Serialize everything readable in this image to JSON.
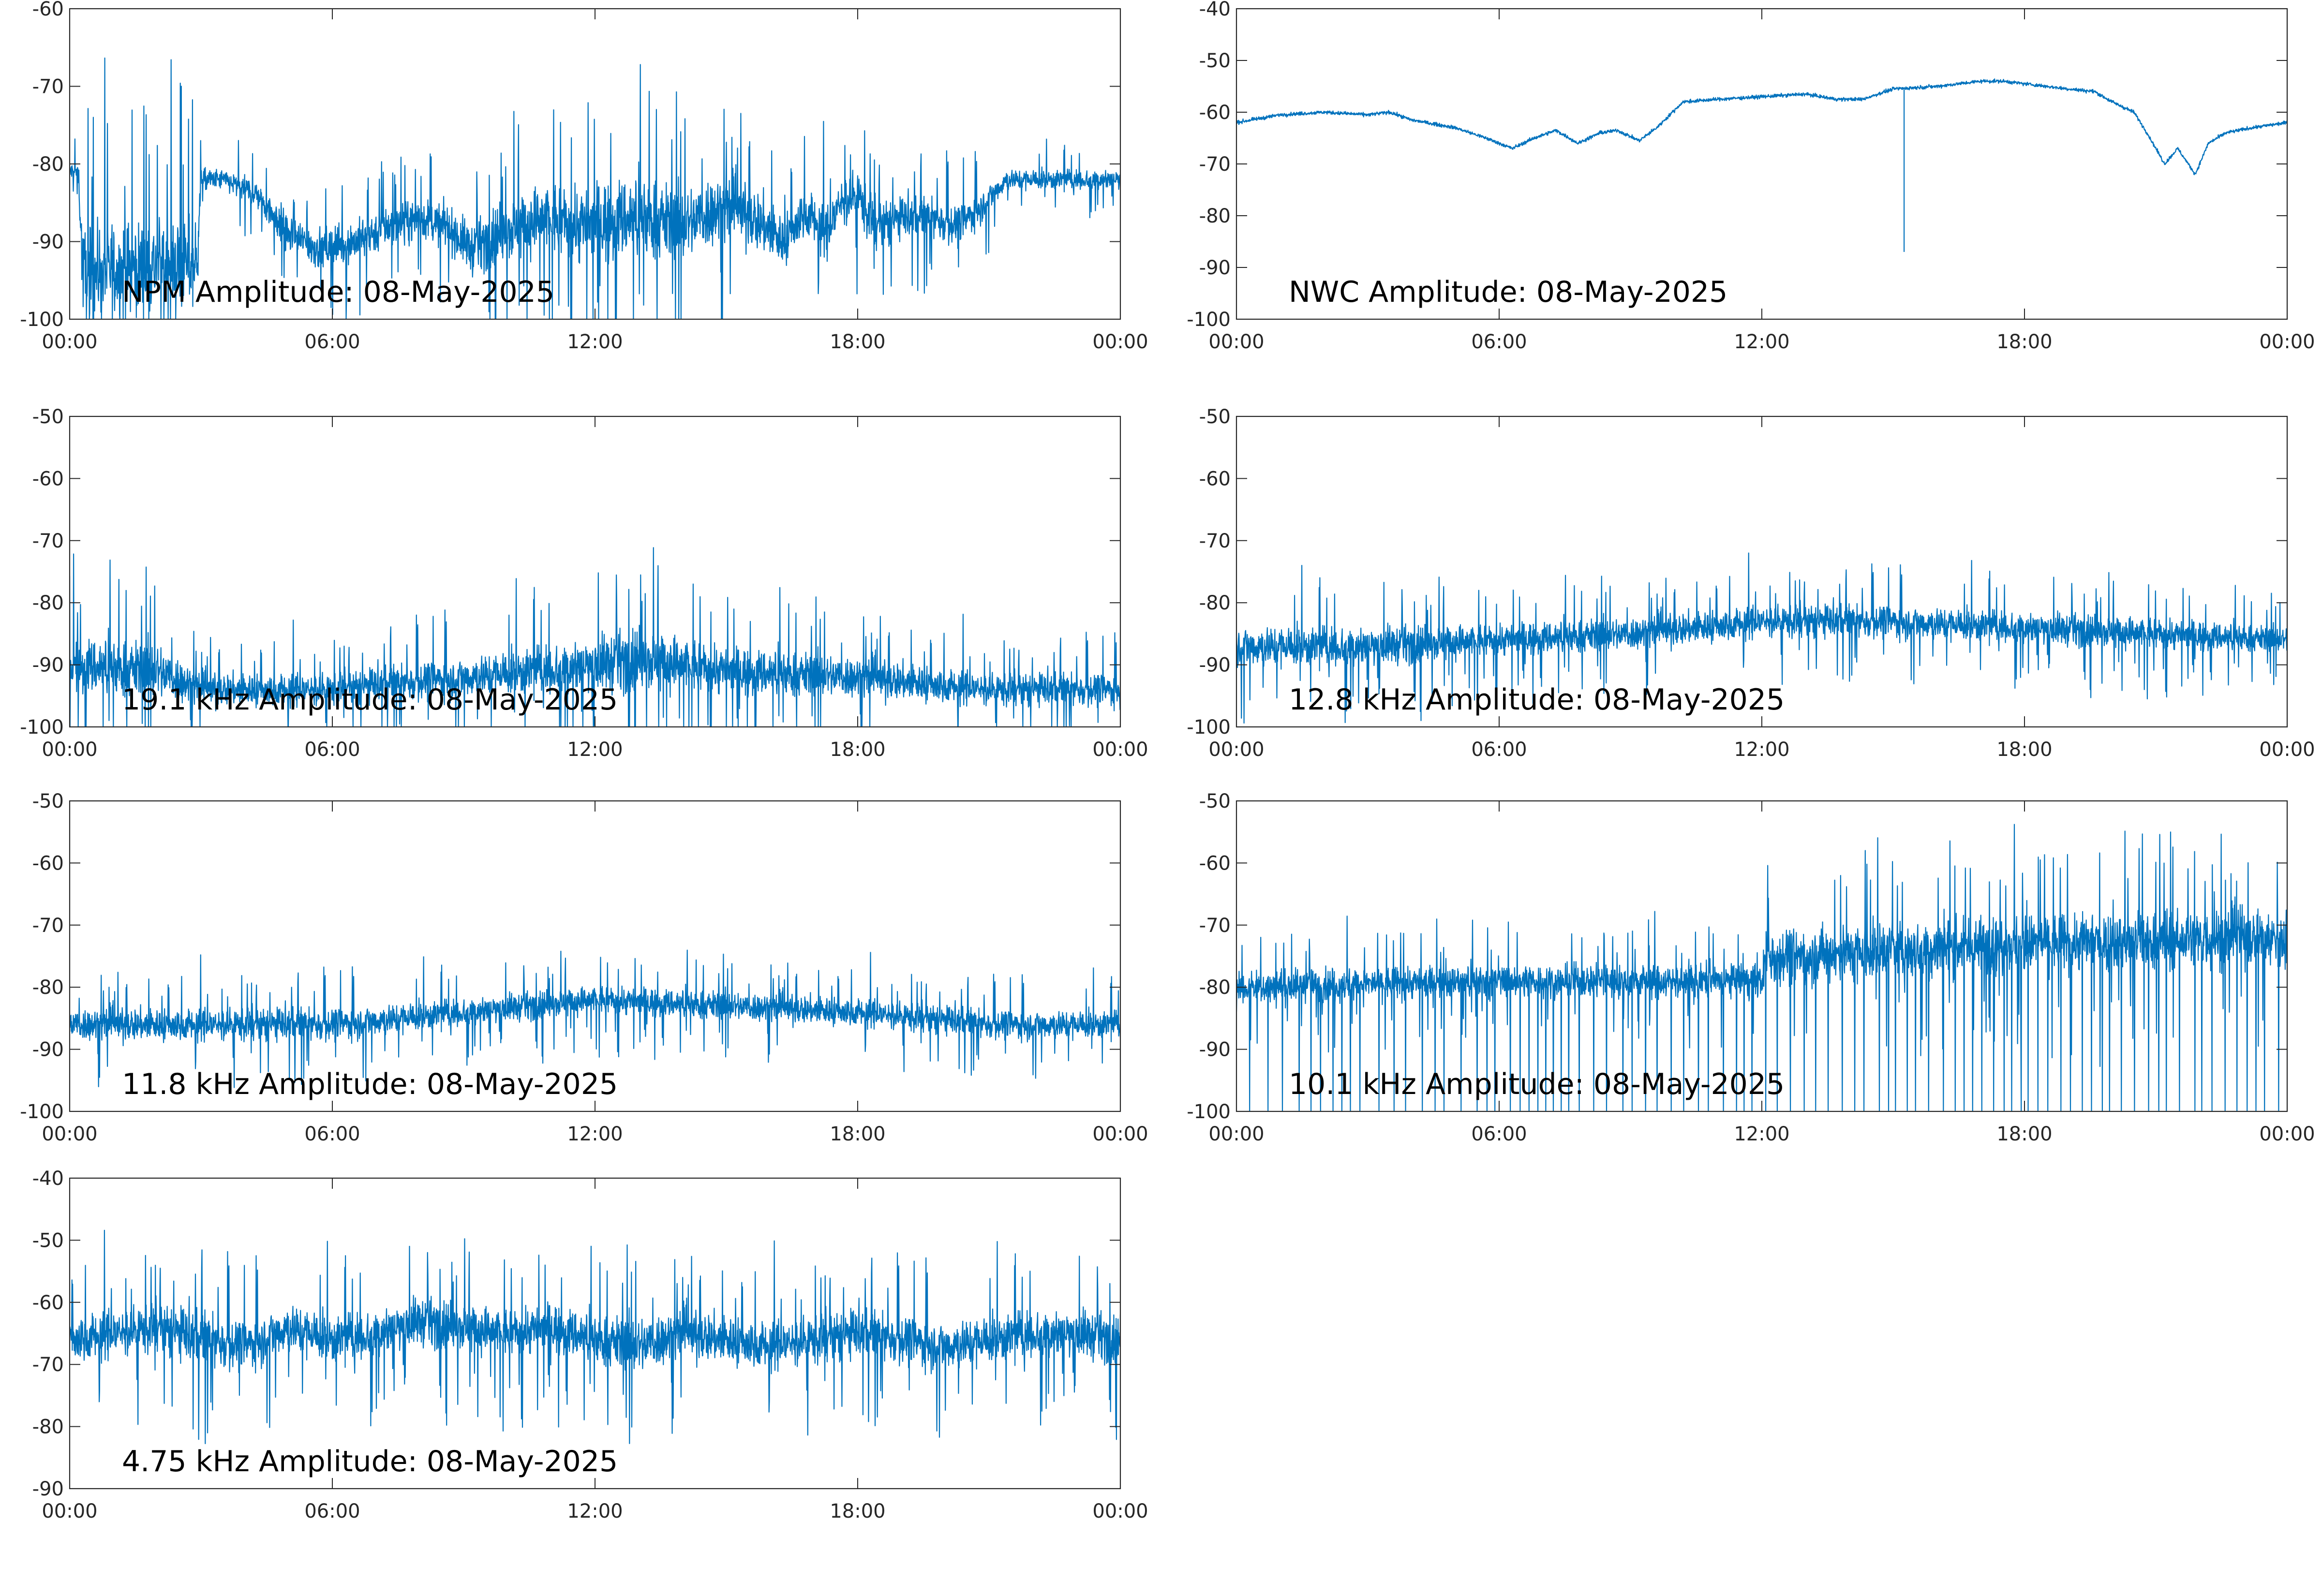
{
  "figure": {
    "line_color": "#0072bd",
    "axis_color": "#262626",
    "background": "#ffffff"
  },
  "chart_data": [
    {
      "type": "line",
      "title": "NPM Amplitude: 08-May-2025",
      "xlabel": "",
      "ylabel": "",
      "x_ticks": [
        "00:00",
        "06:00",
        "12:00",
        "18:00",
        "00:00"
      ],
      "y_ticks": [
        -60,
        -70,
        -80,
        -90,
        -100
      ],
      "ylim": [
        -100,
        -60
      ],
      "xlim_hours": [
        0,
        24
      ],
      "grid": false,
      "series": [
        {
          "x_hours": [
            0,
            0.2,
            0.3,
            2.0,
            2.9,
            3.0,
            3.5,
            4.3,
            5.0,
            5.7,
            6.5,
            7.3,
            8.0,
            8.6,
            9.2,
            9.8,
            10.8,
            11.8,
            12.6,
            13.3,
            14.0,
            14.7,
            15.3,
            15.9,
            16.3,
            16.8,
            17.3,
            17.6,
            18.0,
            18.4,
            19.0,
            19.7,
            20.3,
            20.9,
            21.4,
            22.2,
            23.0,
            24.0
          ],
          "center": [
            -81,
            -81,
            -94,
            -93,
            -93,
            -82,
            -82,
            -84,
            -89,
            -91,
            -90,
            -88,
            -87,
            -88,
            -91,
            -89,
            -87,
            -88,
            -87,
            -87,
            -88,
            -86,
            -86,
            -88,
            -90,
            -86,
            -89,
            -85,
            -84,
            -88,
            -87,
            -87,
            -88,
            -85,
            -82,
            -82,
            -82,
            -82
          ],
          "spread": [
            2,
            2,
            9,
            9,
            9,
            2,
            2,
            3,
            4,
            4,
            4,
            4,
            4,
            4,
            5,
            6,
            7,
            8,
            8,
            8,
            7,
            7,
            6,
            6,
            5,
            5,
            5,
            5,
            5,
            5,
            4,
            4,
            4,
            3,
            2,
            2,
            2,
            2
          ]
        }
      ]
    },
    {
      "type": "line",
      "title": "NWC Amplitude: 08-May-2025",
      "xlabel": "",
      "ylabel": "",
      "x_ticks": [
        "00:00",
        "06:00",
        "12:00",
        "18:00",
        "00:00"
      ],
      "y_ticks": [
        -40,
        -50,
        -60,
        -70,
        -80,
        -90,
        -100
      ],
      "ylim": [
        -100,
        -40
      ],
      "xlim_hours": [
        0,
        24
      ],
      "grid": false,
      "series": [
        {
          "x_hours": [
            0,
            1,
            2,
            3,
            3.5,
            4,
            5,
            5.7,
            6.3,
            6.8,
            7.3,
            7.8,
            8.3,
            8.7,
            9.2,
            9.6,
            10.2,
            11,
            12,
            13,
            13.7,
            14.3,
            15,
            16,
            17,
            17.5,
            18,
            19,
            19.6,
            20,
            20.5,
            20.8,
            21.2,
            21.5,
            21.9,
            22.2,
            22.6,
            23.2,
            24
          ],
          "center": [
            -62,
            -60.5,
            -60,
            -60.5,
            -60,
            -61.5,
            -63,
            -65,
            -67,
            -65,
            -63.5,
            -66,
            -64,
            -63.5,
            -65.5,
            -63,
            -58,
            -57.5,
            -57,
            -56.5,
            -57.5,
            -57.5,
            -55.5,
            -55,
            -54,
            -54,
            -54.5,
            -55.5,
            -56,
            -58,
            -60,
            -64,
            -70,
            -67,
            -72,
            -66,
            -64,
            -63,
            -62
          ],
          "spread": [
            0.4,
            0.4,
            0.4,
            0.4,
            0.4,
            0.4,
            0.4,
            0.4,
            0.4,
            0.4,
            0.4,
            0.4,
            0.4,
            0.4,
            0.4,
            0.4,
            0.4,
            0.4,
            0.4,
            0.4,
            0.4,
            0.4,
            0.4,
            0.4,
            0.4,
            0.4,
            0.4,
            0.4,
            0.4,
            0.4,
            0.4,
            0.4,
            0.4,
            0.4,
            0.4,
            0.4,
            0.4,
            0.4,
            0.4
          ],
          "spikes": [
            {
              "x_hours": 15.25,
              "value": -87
            }
          ]
        }
      ]
    },
    {
      "type": "line",
      "title": "19.1 kHz Amplitude: 08-May-2025",
      "xlabel": "",
      "ylabel": "",
      "x_ticks": [
        "00:00",
        "06:00",
        "12:00",
        "18:00",
        "00:00"
      ],
      "y_ticks": [
        -50,
        -60,
        -70,
        -80,
        -90,
        -100
      ],
      "ylim": [
        -100,
        -50
      ],
      "xlim_hours": [
        0,
        24
      ],
      "grid": false,
      "series": [
        {
          "x_hours": [
            0,
            2,
            3,
            6,
            9,
            12,
            13,
            15,
            18,
            21,
            24
          ],
          "center": [
            -90,
            -91,
            -94,
            -94,
            -92,
            -90,
            -89,
            -91,
            -92,
            -94,
            -94
          ],
          "spread": [
            7,
            7,
            4,
            4,
            5,
            7,
            8,
            6,
            5,
            4,
            4
          ]
        }
      ]
    },
    {
      "type": "line",
      "title": "12.8 kHz Amplitude: 08-May-2025",
      "xlabel": "",
      "ylabel": "",
      "x_ticks": [
        "00:00",
        "06:00",
        "12:00",
        "18:00",
        "00:00"
      ],
      "y_ticks": [
        -50,
        -60,
        -70,
        -80,
        -90,
        -100
      ],
      "ylim": [
        -100,
        -50
      ],
      "xlim_hours": [
        0,
        24
      ],
      "grid": false,
      "series": [
        {
          "x_hours": [
            0,
            3,
            6,
            9,
            12,
            15,
            18,
            21,
            24
          ],
          "center": [
            -87,
            -87,
            -86,
            -85,
            -83,
            -83,
            -84,
            -85,
            -86
          ],
          "spread": [
            5,
            5,
            4,
            4,
            4,
            4,
            4,
            4,
            3
          ]
        }
      ]
    },
    {
      "type": "line",
      "title": "11.8 kHz Amplitude: 08-May-2025",
      "xlabel": "",
      "ylabel": "",
      "x_ticks": [
        "00:00",
        "06:00",
        "12:00",
        "18:00",
        "00:00"
      ],
      "y_ticks": [
        -50,
        -60,
        -70,
        -80,
        -90,
        -100
      ],
      "ylim": [
        -100,
        -50
      ],
      "xlim_hours": [
        0,
        24
      ],
      "grid": false,
      "series": [
        {
          "x_hours": [
            0,
            3,
            6,
            9,
            12,
            15,
            18,
            21,
            24
          ],
          "center": [
            -86,
            -86,
            -86,
            -84,
            -82,
            -83,
            -84,
            -86,
            -86
          ],
          "spread": [
            4,
            4,
            4,
            3.5,
            3.5,
            3.5,
            3.5,
            3.5,
            3.5
          ]
        }
      ]
    },
    {
      "type": "line",
      "title": "10.1 kHz Amplitude: 08-May-2025",
      "xlabel": "",
      "ylabel": "",
      "x_ticks": [
        "00:00",
        "06:00",
        "12:00",
        "18:00",
        "00:00"
      ],
      "y_ticks": [
        -50,
        -60,
        -70,
        -80,
        -90,
        -100
      ],
      "ylim": [
        -100,
        -50
      ],
      "xlim_hours": [
        0,
        24
      ],
      "grid": false,
      "series": [
        {
          "x_hours": [
            0,
            6,
            12,
            12.1,
            18,
            24
          ],
          "center": [
            -80,
            -79,
            -79,
            -75,
            -73,
            -72
          ],
          "spread": [
            4,
            4,
            4,
            7,
            7,
            7
          ],
          "dropouts_per_hour": [
            [
              0,
              3
            ],
            [
              12,
              4
            ],
            [
              24,
              4
            ]
          ],
          "dropout_value": -100
        }
      ]
    },
    {
      "type": "line",
      "title": "4.75 kHz Amplitude: 08-May-2025",
      "xlabel": "",
      "ylabel": "",
      "x_ticks": [
        "00:00",
        "06:00",
        "12:00",
        "18:00",
        "00:00"
      ],
      "y_ticks": [
        -40,
        -50,
        -60,
        -70,
        -80,
        -90
      ],
      "ylim": [
        -90,
        -40
      ],
      "xlim_hours": [
        0,
        24
      ],
      "grid": false,
      "series": [
        {
          "x_hours": [
            0,
            1,
            2,
            3,
            4,
            5,
            6,
            7,
            8,
            9,
            10,
            11,
            12,
            13,
            14,
            15,
            16,
            17,
            18,
            19,
            20,
            21,
            22,
            23,
            24
          ],
          "center": [
            -66,
            -65,
            -64,
            -66,
            -67,
            -64,
            -66,
            -65,
            -63,
            -64,
            -65,
            -64,
            -66,
            -67,
            -65,
            -66,
            -67,
            -66,
            -65,
            -66,
            -67,
            -66,
            -65,
            -65,
            -66
          ],
          "spread": [
            6,
            6,
            6,
            7,
            6,
            6,
            6,
            6,
            6,
            6,
            6,
            6,
            6,
            7,
            6,
            6,
            6,
            6,
            6,
            6,
            6,
            6,
            6,
            6,
            6
          ]
        }
      ]
    }
  ]
}
